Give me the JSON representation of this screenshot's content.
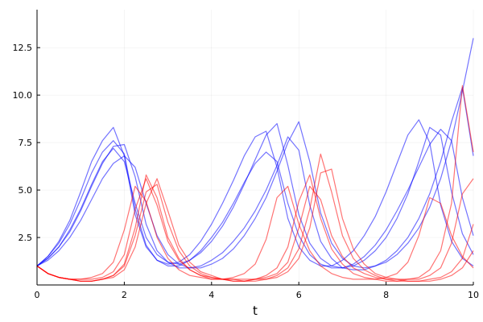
{
  "chart_data": {
    "type": "line",
    "title": "",
    "xlabel": "t",
    "ylabel": "",
    "xlim": [
      0,
      10
    ],
    "ylim": [
      0,
      14.5
    ],
    "xticks": [
      0,
      2,
      4,
      6,
      8,
      10
    ],
    "xtick_labels": [
      "0",
      "2",
      "4",
      "6",
      "8",
      "10"
    ],
    "yticks": [
      2.5,
      5.0,
      7.5,
      10.0,
      12.5
    ],
    "ytick_labels": [
      "2.5",
      "5.0",
      "7.5",
      "10.0",
      "12.5"
    ],
    "grid": true,
    "legend": "none",
    "x": [
      0,
      0.25,
      0.5,
      0.75,
      1,
      1.25,
      1.5,
      1.75,
      2,
      2.25,
      2.5,
      2.75,
      3,
      3.25,
      3.5,
      3.75,
      4,
      4.25,
      4.5,
      4.75,
      5,
      5.25,
      5.5,
      5.75,
      6,
      6.25,
      6.5,
      6.75,
      7,
      7.25,
      7.5,
      7.75,
      8,
      8.25,
      8.5,
      8.75,
      9,
      9.25,
      9.5,
      9.75,
      10
    ],
    "series": [
      {
        "color": "#0000ff",
        "values": [
          1.0,
          1.5,
          2.2,
          3.2,
          4.5,
          5.9,
          7.0,
          7.6,
          6.9,
          4.0,
          2.1,
          1.3,
          1.0,
          1.0,
          1.3,
          1.8,
          2.5,
          3.3,
          4.3,
          5.4,
          6.4,
          7.0,
          6.5,
          4.3,
          2.6,
          1.6,
          1.1,
          0.9,
          0.9,
          1.1,
          1.5,
          2.1,
          2.9,
          3.9,
          5.0,
          6.2,
          7.4,
          8.2,
          7.6,
          4.6,
          2.6
        ]
      },
      {
        "color": "#0000ff",
        "values": [
          1.0,
          1.4,
          2.0,
          2.8,
          3.9,
          5.2,
          6.4,
          7.3,
          7.4,
          5.7,
          3.2,
          1.8,
          1.2,
          0.9,
          0.9,
          1.0,
          1.3,
          1.7,
          2.3,
          3.0,
          3.9,
          5.0,
          6.3,
          7.8,
          7.1,
          4.2,
          2.3,
          1.4,
          0.9,
          0.8,
          0.8,
          1.0,
          1.3,
          1.8,
          2.5,
          3.5,
          4.8,
          6.5,
          8.6,
          10.4,
          6.8
        ]
      },
      {
        "color": "#0000ff",
        "values": [
          1.0,
          1.5,
          2.3,
          3.4,
          4.9,
          6.5,
          7.6,
          8.3,
          6.8,
          3.7,
          2.0,
          1.3,
          1.1,
          1.2,
          1.6,
          2.3,
          3.2,
          4.3,
          5.5,
          6.8,
          7.8,
          8.1,
          6.2,
          3.5,
          2.0,
          1.3,
          1.0,
          1.0,
          1.3,
          1.8,
          2.6,
          3.6,
          4.9,
          6.4,
          7.9,
          8.7,
          7.5,
          4.2,
          2.3,
          1.4,
          1.0
        ]
      },
      {
        "color": "#0000ff",
        "values": [
          1.0,
          1.3,
          1.8,
          2.5,
          3.4,
          4.5,
          5.6,
          6.4,
          6.8,
          6.2,
          4.3,
          2.6,
          1.6,
          1.1,
          0.9,
          0.9,
          1.1,
          1.4,
          1.9,
          2.6,
          3.5,
          4.6,
          6.0,
          7.5,
          8.6,
          6.5,
          3.8,
          2.2,
          1.4,
          1.0,
          0.9,
          1.0,
          1.2,
          1.6,
          2.2,
          3.0,
          4.1,
          5.6,
          7.6,
          10.2,
          13.0
        ]
      },
      {
        "color": "#0000ff",
        "values": [
          1.0,
          1.4,
          2.0,
          2.9,
          4.0,
          5.3,
          6.5,
          7.2,
          6.5,
          4.3,
          2.5,
          1.6,
          1.2,
          1.1,
          1.3,
          1.7,
          2.3,
          3.1,
          4.1,
          5.3,
          6.6,
          7.9,
          8.5,
          6.3,
          3.7,
          2.2,
          1.4,
          1.0,
          0.9,
          1.0,
          1.3,
          1.8,
          2.5,
          3.5,
          4.8,
          6.5,
          8.3,
          7.9,
          4.9,
          2.7,
          1.6
        ]
      },
      {
        "color": "#ff0000",
        "values": [
          1.0,
          0.6,
          0.4,
          0.3,
          0.3,
          0.3,
          0.4,
          0.7,
          1.6,
          4.0,
          5.6,
          4.2,
          2.3,
          1.3,
          0.8,
          0.5,
          0.4,
          0.3,
          0.3,
          0.3,
          0.3,
          0.4,
          0.6,
          1.2,
          3.0,
          5.2,
          4.5,
          2.6,
          1.5,
          0.9,
          0.6,
          0.4,
          0.3,
          0.3,
          0.3,
          0.3,
          0.5,
          0.9,
          2.2,
          4.8,
          5.6
        ]
      },
      {
        "color": "#ff0000",
        "values": [
          1.0,
          0.6,
          0.4,
          0.3,
          0.2,
          0.2,
          0.3,
          0.5,
          1.0,
          2.6,
          4.9,
          5.3,
          3.3,
          1.8,
          1.0,
          0.6,
          0.4,
          0.3,
          0.2,
          0.2,
          0.3,
          0.3,
          0.5,
          0.9,
          1.9,
          4.0,
          6.9,
          4.9,
          2.6,
          1.4,
          0.8,
          0.5,
          0.3,
          0.2,
          0.2,
          0.2,
          0.3,
          0.4,
          0.7,
          1.4,
          3.2
        ]
      },
      {
        "color": "#ff0000",
        "values": [
          1.0,
          0.6,
          0.4,
          0.3,
          0.3,
          0.4,
          0.6,
          1.2,
          2.9,
          5.2,
          4.4,
          2.5,
          1.4,
          0.8,
          0.5,
          0.4,
          0.3,
          0.3,
          0.4,
          0.6,
          1.1,
          2.4,
          4.6,
          5.2,
          3.2,
          1.8,
          1.0,
          0.6,
          0.4,
          0.3,
          0.3,
          0.3,
          0.4,
          0.6,
          1.2,
          2.6,
          4.6,
          4.3,
          2.6,
          1.5,
          0.9
        ]
      },
      {
        "color": "#ff0000",
        "values": [
          1.0,
          0.6,
          0.4,
          0.3,
          0.2,
          0.2,
          0.3,
          0.4,
          0.8,
          2.0,
          4.3,
          5.6,
          3.9,
          2.1,
          1.2,
          0.7,
          0.5,
          0.3,
          0.3,
          0.2,
          0.2,
          0.3,
          0.4,
          0.7,
          1.4,
          3.0,
          5.9,
          6.1,
          3.5,
          1.9,
          1.1,
          0.6,
          0.4,
          0.3,
          0.2,
          0.2,
          0.2,
          0.3,
          0.5,
          0.9,
          1.8
        ]
      },
      {
        "color": "#ff0000",
        "values": [
          1.0,
          0.6,
          0.4,
          0.3,
          0.2,
          0.2,
          0.3,
          0.5,
          1.1,
          3.0,
          5.8,
          4.6,
          2.5,
          1.4,
          0.8,
          0.5,
          0.3,
          0.3,
          0.2,
          0.2,
          0.3,
          0.5,
          0.9,
          2.0,
          4.4,
          5.8,
          3.5,
          1.9,
          1.1,
          0.6,
          0.4,
          0.3,
          0.2,
          0.2,
          0.3,
          0.4,
          0.8,
          1.8,
          4.3,
          10.5,
          7.0
        ]
      }
    ]
  }
}
